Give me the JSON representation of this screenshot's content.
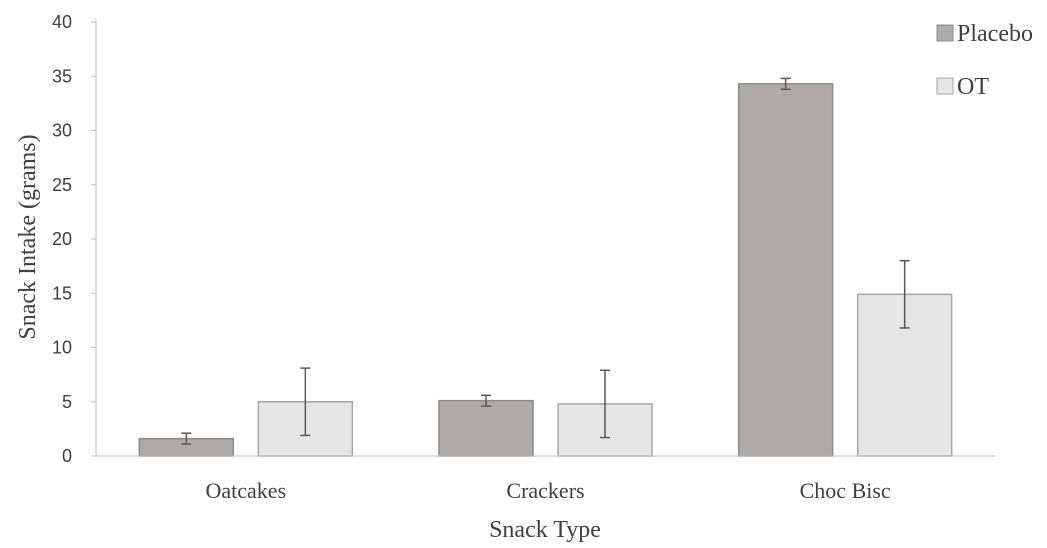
{
  "chart_data": {
    "type": "bar",
    "title": "",
    "xlabel": "Snack Type",
    "ylabel": "Snack Intake (grams)",
    "categories": [
      "Oatcakes",
      "Crackers",
      "Choc Bisc"
    ],
    "series": [
      {
        "name": "Placebo",
        "values": [
          1.6,
          5.1,
          34.3
        ],
        "error": [
          0.5,
          0.5,
          0.5
        ],
        "color": "#aeaaaa",
        "stroke": "#8e8a8a"
      },
      {
        "name": "OT",
        "values": [
          5.0,
          4.8,
          14.9
        ],
        "error": [
          3.1,
          3.1,
          3.1
        ],
        "color": "#e7e6e6",
        "stroke": "#a6a6a6"
      }
    ],
    "ylim": [
      0,
      40
    ],
    "yticks": [
      "0",
      "5",
      "10",
      "15",
      "20",
      "25",
      "30",
      "35",
      "40"
    ],
    "grid": false,
    "legend_position": "top-right",
    "error_bar_color": "#595959",
    "axis_color": "#bfbfbf"
  }
}
